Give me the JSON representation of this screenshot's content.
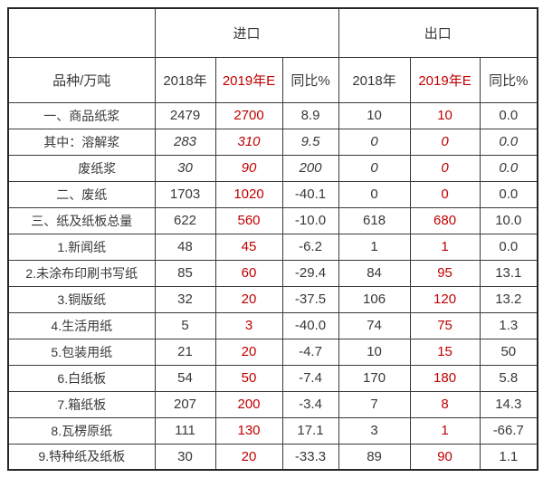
{
  "table": {
    "colors": {
      "estimate_red": "#c00000",
      "text_dark": "#383838",
      "grid_line": "#3a3a3a"
    },
    "corner_label": "",
    "unit_header": "品种/万吨",
    "group_headers": {
      "import": "进口",
      "export": "出口"
    },
    "col_headers": {
      "import_2018": "2018年",
      "import_2019e": "2019年E",
      "import_yoy": "同比%",
      "export_2018": "2018年",
      "export_2019e": "2019年E",
      "export_yoy": "同比%"
    },
    "rows": [
      {
        "label": "一、商品纸浆",
        "indent": false,
        "italic": false,
        "values": [
          "2479",
          "2700",
          "8.9",
          "10",
          "10",
          "0.0"
        ]
      },
      {
        "label": "其中：溶解浆",
        "indent": false,
        "italic": true,
        "values": [
          "283",
          "310",
          "9.5",
          "0",
          "0",
          "0.0"
        ]
      },
      {
        "label": "废纸浆",
        "indent": true,
        "italic": true,
        "values": [
          "30",
          "90",
          "200",
          "0",
          "0",
          "0.0"
        ]
      },
      {
        "label": "二、废纸",
        "indent": false,
        "italic": false,
        "values": [
          "1703",
          "1020",
          "-40.1",
          "0",
          "0",
          "0.0"
        ]
      },
      {
        "label": "三、纸及纸板总量",
        "indent": false,
        "italic": false,
        "values": [
          "622",
          "560",
          "-10.0",
          "618",
          "680",
          "10.0"
        ]
      },
      {
        "label": "1.新闻纸",
        "indent": false,
        "italic": false,
        "values": [
          "48",
          "45",
          "-6.2",
          "1",
          "1",
          "0.0"
        ]
      },
      {
        "label": "2.未涂布印刷书写纸",
        "indent": false,
        "italic": false,
        "values": [
          "85",
          "60",
          "-29.4",
          "84",
          "95",
          "13.1"
        ]
      },
      {
        "label": "3.铜版纸",
        "indent": false,
        "italic": false,
        "values": [
          "32",
          "20",
          "-37.5",
          "106",
          "120",
          "13.2"
        ]
      },
      {
        "label": "4.生活用纸",
        "indent": false,
        "italic": false,
        "values": [
          "5",
          "3",
          "-40.0",
          "74",
          "75",
          "1.3"
        ]
      },
      {
        "label": "5.包装用纸",
        "indent": false,
        "italic": false,
        "values": [
          "21",
          "20",
          "-4.7",
          "10",
          "15",
          "50"
        ]
      },
      {
        "label": "6.白纸板",
        "indent": false,
        "italic": false,
        "values": [
          "54",
          "50",
          "-7.4",
          "170",
          "180",
          "5.8"
        ]
      },
      {
        "label": "7.箱纸板",
        "indent": false,
        "italic": false,
        "values": [
          "207",
          "200",
          "-3.4",
          "7",
          "8",
          "14.3"
        ]
      },
      {
        "label": "8.瓦楞原纸",
        "indent": false,
        "italic": false,
        "values": [
          "111",
          "130",
          "17.1",
          "3",
          "1",
          "-66.7"
        ]
      },
      {
        "label": "9.特种纸及纸板",
        "indent": false,
        "italic": false,
        "values": [
          "30",
          "20",
          "-33.3",
          "89",
          "90",
          "1.1"
        ]
      }
    ]
  }
}
